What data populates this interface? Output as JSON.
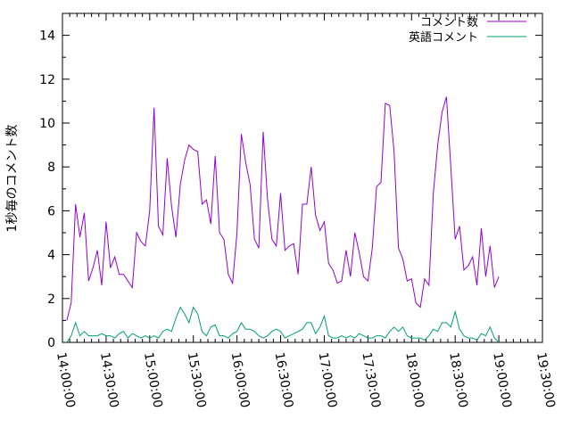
{
  "chart_data": {
    "type": "line",
    "title": "",
    "xlabel": "",
    "ylabel": "1秒毎のコメント数",
    "xlim": [
      "14:00:00",
      "19:30:00"
    ],
    "ylim": [
      0,
      15
    ],
    "grid": false,
    "legend_position": "top-right",
    "x_ticks": [
      "14:00:00",
      "14:30:00",
      "15:00:00",
      "15:30:00",
      "16:00:00",
      "16:30:00",
      "17:00:00",
      "17:30:00",
      "18:00:00",
      "18:30:00",
      "19:00:00",
      "19:30:00"
    ],
    "y_ticks": [
      0,
      2,
      4,
      6,
      8,
      10,
      12,
      14
    ],
    "series": [
      {
        "name": "コメント数",
        "color": "#9400d3",
        "x": [
          "14:03:00",
          "14:06:00",
          "14:09:00",
          "14:12:00",
          "14:15:00",
          "14:18:00",
          "14:21:00",
          "14:24:00",
          "14:27:00",
          "14:30:00",
          "14:33:00",
          "14:36:00",
          "14:39:00",
          "14:42:00",
          "14:45:00",
          "14:48:00",
          "14:51:00",
          "14:54:00",
          "14:57:00",
          "15:00:00",
          "15:03:00",
          "15:06:00",
          "15:09:00",
          "15:12:00",
          "15:15:00",
          "15:18:00",
          "15:21:00",
          "15:24:00",
          "15:27:00",
          "15:30:00",
          "15:33:00",
          "15:36:00",
          "15:39:00",
          "15:42:00",
          "15:45:00",
          "15:48:00",
          "15:51:00",
          "15:54:00",
          "15:57:00",
          "16:00:00",
          "16:03:00",
          "16:06:00",
          "16:09:00",
          "16:12:00",
          "16:15:00",
          "16:18:00",
          "16:21:00",
          "16:24:00",
          "16:27:00",
          "16:30:00",
          "16:33:00",
          "16:36:00",
          "16:39:00",
          "16:42:00",
          "16:45:00",
          "16:48:00",
          "16:51:00",
          "16:54:00",
          "16:57:00",
          "17:00:00",
          "17:03:00",
          "17:06:00",
          "17:09:00",
          "17:12:00",
          "17:15:00",
          "17:18:00",
          "17:21:00",
          "17:24:00",
          "17:27:00",
          "17:30:00",
          "17:33:00",
          "17:36:00",
          "17:39:00",
          "17:42:00",
          "17:45:00",
          "17:48:00",
          "17:51:00",
          "17:54:00",
          "17:57:00",
          "18:00:00",
          "18:03:00",
          "18:06:00",
          "18:09:00",
          "18:12:00",
          "18:15:00",
          "18:18:00",
          "18:21:00",
          "18:24:00",
          "18:27:00",
          "18:30:00",
          "18:33:00",
          "18:36:00",
          "18:39:00",
          "18:42:00",
          "18:45:00",
          "18:48:00",
          "18:51:00",
          "18:54:00",
          "18:57:00",
          "19:00:00"
        ],
        "values": [
          1.0,
          1.8,
          6.3,
          4.8,
          5.9,
          2.8,
          3.4,
          4.2,
          2.6,
          5.5,
          3.4,
          3.9,
          3.1,
          3.1,
          2.8,
          2.5,
          5.0,
          4.6,
          4.4,
          6.0,
          10.7,
          5.3,
          4.9,
          8.4,
          6.2,
          4.8,
          7.2,
          8.3,
          9.0,
          8.8,
          8.7,
          6.3,
          6.5,
          5.4,
          8.5,
          5.0,
          4.7,
          3.1,
          2.7,
          5.0,
          9.5,
          8.2,
          7.2,
          4.7,
          4.3,
          9.6,
          6.5,
          4.7,
          4.4,
          6.8,
          4.2,
          4.4,
          4.5,
          3.1,
          6.3,
          6.3,
          8.0,
          5.8,
          5.1,
          5.5,
          3.6,
          3.3,
          2.7,
          2.8,
          4.2,
          3.0,
          5.0,
          4.1,
          3.0,
          2.8,
          4.3,
          7.1,
          7.3,
          10.9,
          10.8,
          8.7,
          4.3,
          3.8,
          2.8,
          2.9,
          1.8,
          1.6,
          2.9,
          2.6,
          6.8,
          9.0,
          10.5,
          11.2,
          8.0,
          4.7,
          5.3,
          3.3,
          3.5,
          3.9,
          2.6,
          5.2,
          3.0,
          4.4,
          2.5,
          3.0
        ]
      },
      {
        "name": "英語コメント",
        "color": "#009e73",
        "x": [
          "14:03:00",
          "14:06:00",
          "14:09:00",
          "14:12:00",
          "14:15:00",
          "14:18:00",
          "14:21:00",
          "14:24:00",
          "14:27:00",
          "14:30:00",
          "14:33:00",
          "14:36:00",
          "14:39:00",
          "14:42:00",
          "14:45:00",
          "14:48:00",
          "14:51:00",
          "14:54:00",
          "14:57:00",
          "15:00:00",
          "15:03:00",
          "15:06:00",
          "15:09:00",
          "15:12:00",
          "15:15:00",
          "15:18:00",
          "15:21:00",
          "15:24:00",
          "15:27:00",
          "15:30:00",
          "15:33:00",
          "15:36:00",
          "15:39:00",
          "15:42:00",
          "15:45:00",
          "15:48:00",
          "15:51:00",
          "15:54:00",
          "15:57:00",
          "16:00:00",
          "16:03:00",
          "16:06:00",
          "16:09:00",
          "16:12:00",
          "16:15:00",
          "16:18:00",
          "16:21:00",
          "16:24:00",
          "16:27:00",
          "16:30:00",
          "16:33:00",
          "16:36:00",
          "16:39:00",
          "16:42:00",
          "16:45:00",
          "16:48:00",
          "16:51:00",
          "16:54:00",
          "16:57:00",
          "17:00:00",
          "17:03:00",
          "17:06:00",
          "17:09:00",
          "17:12:00",
          "17:15:00",
          "17:18:00",
          "17:21:00",
          "17:24:00",
          "17:27:00",
          "17:30:00",
          "17:33:00",
          "17:36:00",
          "17:39:00",
          "17:42:00",
          "17:45:00",
          "17:48:00",
          "17:51:00",
          "17:54:00",
          "17:57:00",
          "18:00:00",
          "18:03:00",
          "18:06:00",
          "18:09:00",
          "18:12:00",
          "18:15:00",
          "18:18:00",
          "18:21:00",
          "18:24:00",
          "18:27:00",
          "18:30:00",
          "18:33:00",
          "18:36:00",
          "18:39:00",
          "18:42:00",
          "18:45:00",
          "18:48:00",
          "18:51:00",
          "18:54:00",
          "18:57:00",
          "19:00:00"
        ],
        "values": [
          0.0,
          0.3,
          0.9,
          0.3,
          0.5,
          0.3,
          0.3,
          0.3,
          0.4,
          0.3,
          0.3,
          0.2,
          0.4,
          0.5,
          0.2,
          0.4,
          0.3,
          0.2,
          0.3,
          0.2,
          0.3,
          0.2,
          0.5,
          0.6,
          0.5,
          1.1,
          1.6,
          1.3,
          0.9,
          1.6,
          1.3,
          0.5,
          0.3,
          0.7,
          0.8,
          0.3,
          0.3,
          0.2,
          0.4,
          0.5,
          0.9,
          0.6,
          0.6,
          0.5,
          0.3,
          0.2,
          0.3,
          0.5,
          0.6,
          0.5,
          0.2,
          0.3,
          0.4,
          0.5,
          0.6,
          0.9,
          0.9,
          0.4,
          0.7,
          1.2,
          0.3,
          0.2,
          0.2,
          0.3,
          0.2,
          0.3,
          0.2,
          0.4,
          0.3,
          0.2,
          0.2,
          0.3,
          0.3,
          0.2,
          0.5,
          0.7,
          0.5,
          0.7,
          0.3,
          0.2,
          0.2,
          0.2,
          0.1,
          0.3,
          0.6,
          0.5,
          0.9,
          0.9,
          0.7,
          1.4,
          0.6,
          0.3,
          0.2,
          0.2,
          0.1,
          0.4,
          0.3,
          0.7,
          0.2,
          0.0
        ]
      }
    ]
  }
}
